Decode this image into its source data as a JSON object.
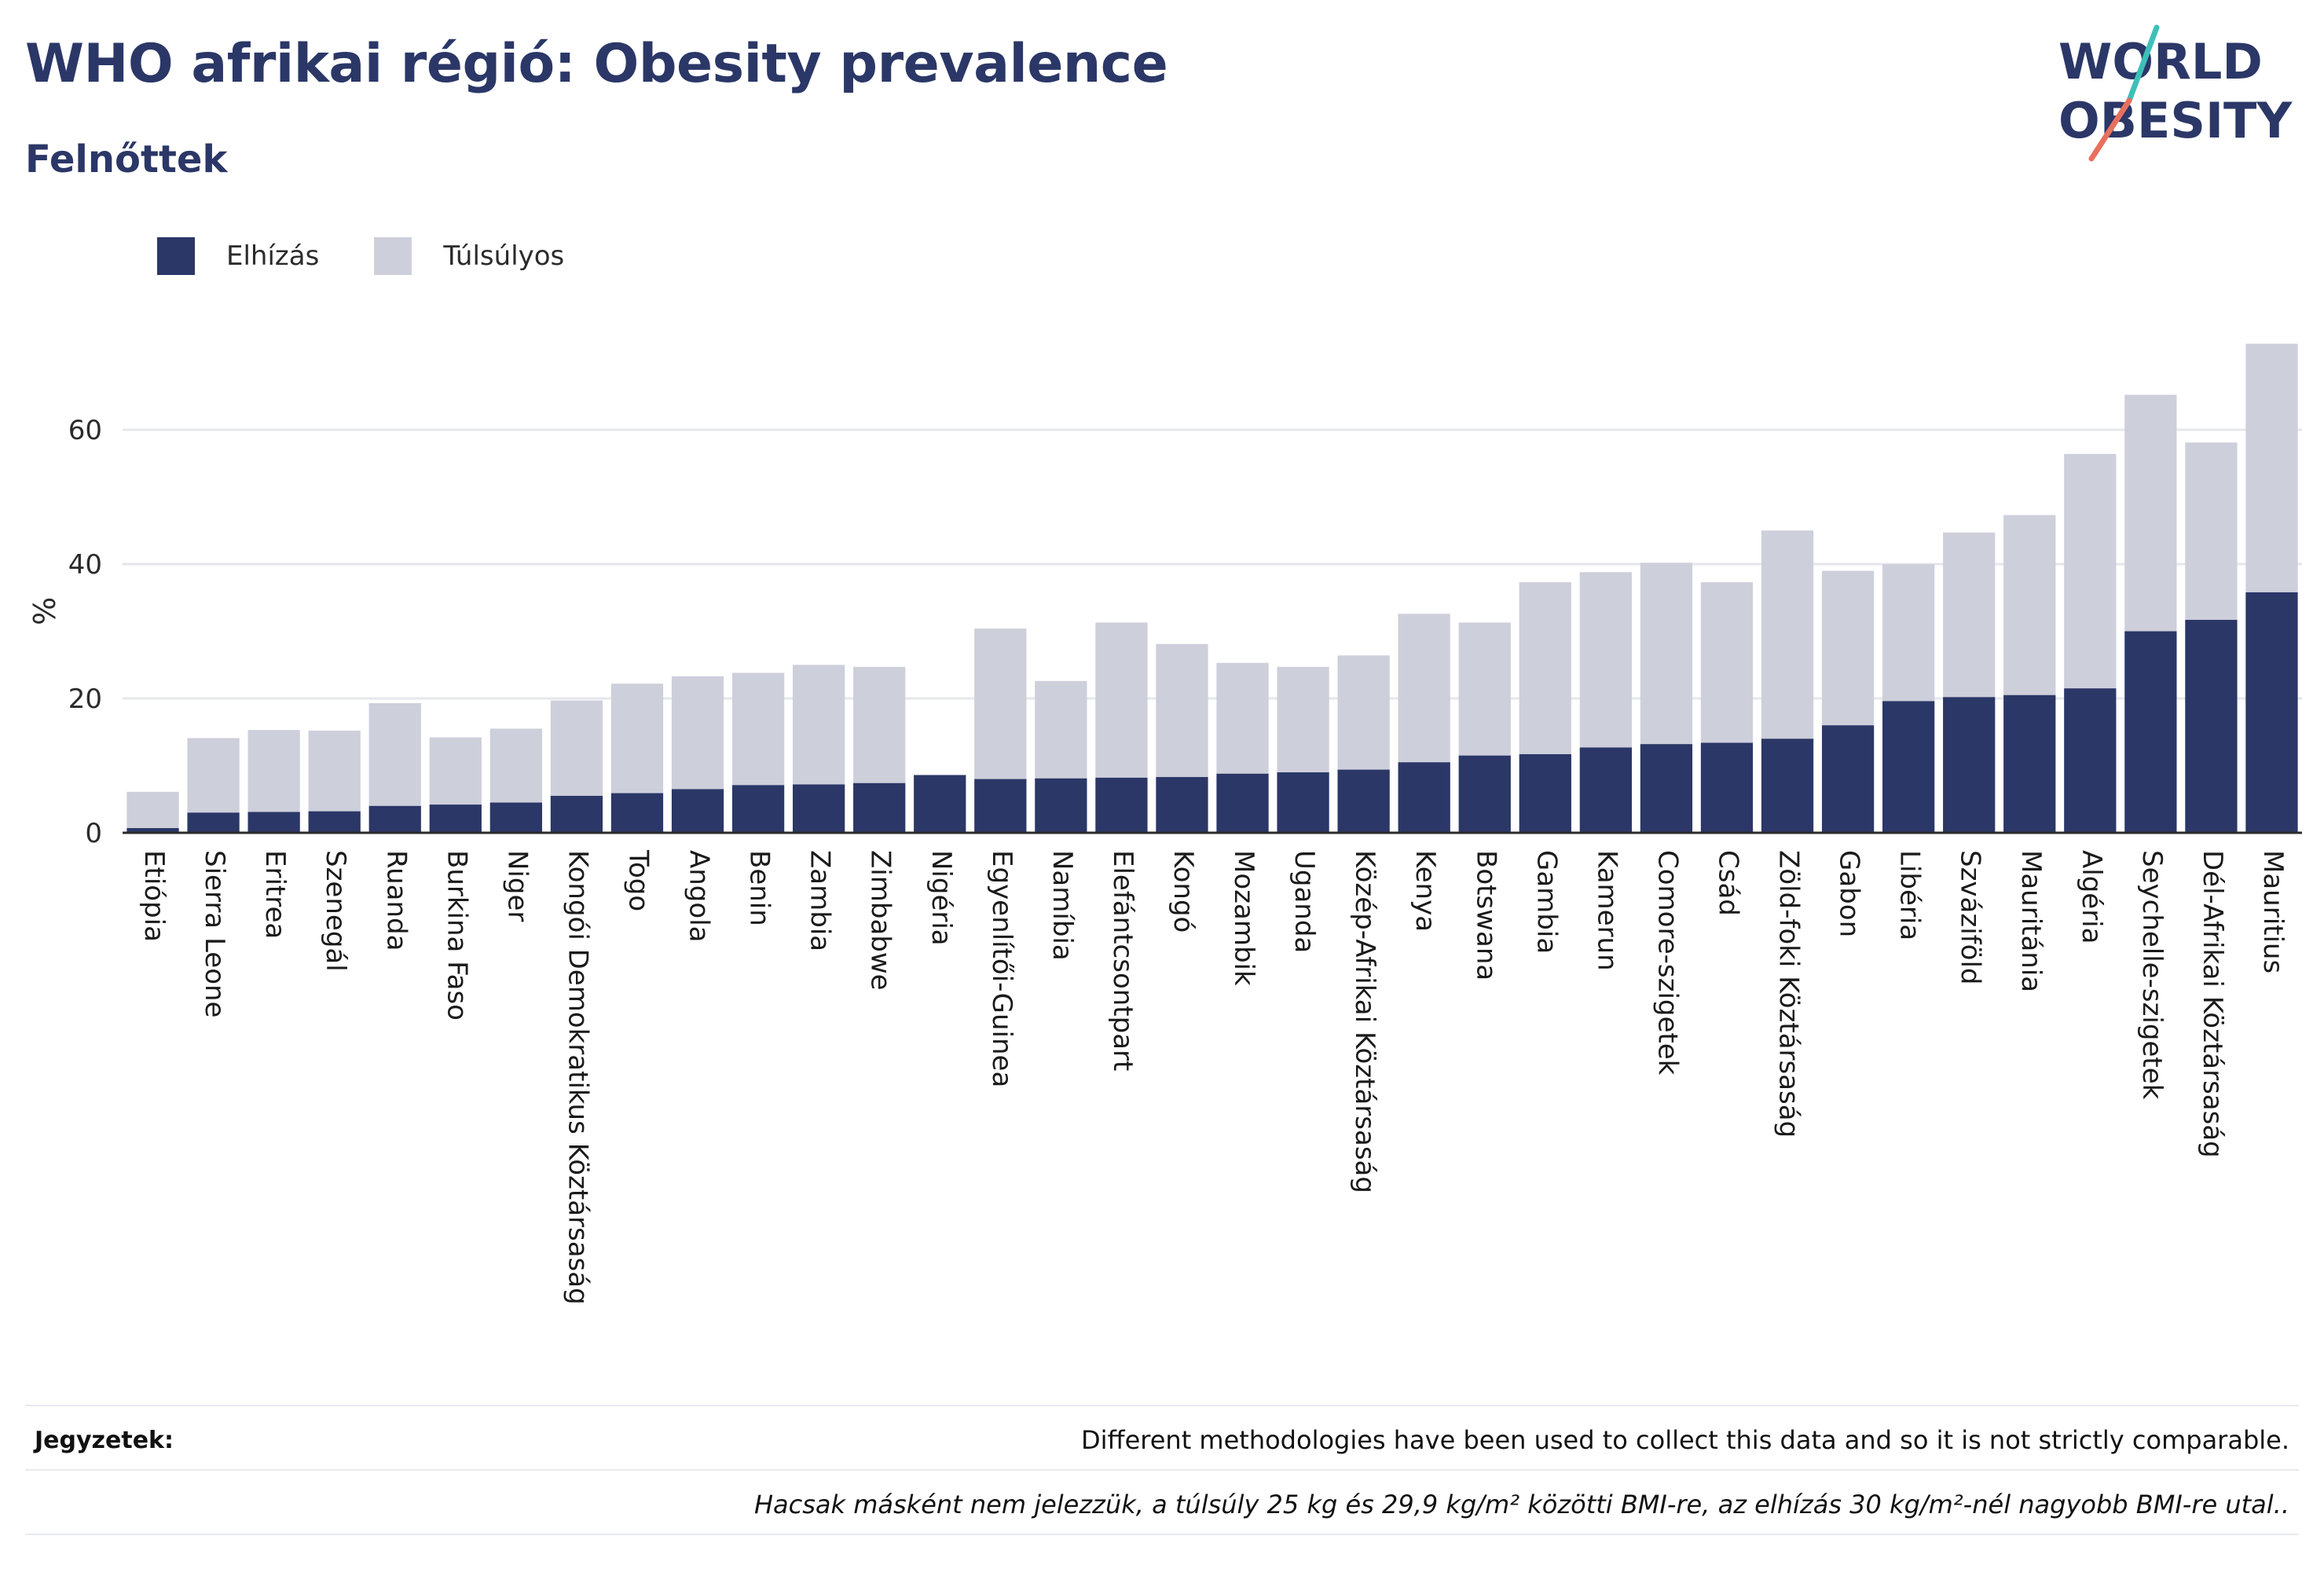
{
  "header": {
    "title": "WHO afrikai régió: Obesity prevalence",
    "subtitle": "Felnőttek"
  },
  "logo": {
    "line1": "WORLD",
    "line2": "OBESITY",
    "accent_color": "#e8705e",
    "accent_color_2": "#3cc0b8"
  },
  "legend": {
    "items": [
      {
        "label": "Elhízás",
        "color": "#2b3767"
      },
      {
        "label": "Túlsúlyos",
        "color": "#cdcfdb"
      }
    ]
  },
  "chart_data": {
    "type": "bar",
    "stacked": true,
    "ylabel": "%",
    "ylim": [
      0,
      75
    ],
    "yticks": [
      0,
      20,
      40,
      60
    ],
    "grid": true,
    "legend_position": "top-left",
    "categories": [
      "Etiópia",
      "Sierra Leone",
      "Eritrea",
      "Szenegál",
      "Ruanda",
      "Burkina Faso",
      "Niger",
      "Kongói Demokratikus Köztársaság",
      "Togo",
      "Angola",
      "Benin",
      "Zambia",
      "Zimbabwe",
      "Nigéria",
      "Egyenlítői-Guinea",
      "Namíbia",
      "Elefántcsontpart",
      "Kongó",
      "Mozambik",
      "Uganda",
      "Közép-Afrikai Köztársaság",
      "Kenya",
      "Botswana",
      "Gambia",
      "Kamerun",
      "Comore-szigetek",
      "Csád",
      "Zöld-foki Köztársaság",
      "Gabon",
      "Libéria",
      "Szváziföld",
      "Mauritánia",
      "Algéria",
      "Seychelle-szigetek",
      "Dél-Afrikai Köztársaság",
      "Mauritius"
    ],
    "series": [
      {
        "name": "Elhízás",
        "color": "#2b3767",
        "values": [
          0.7,
          3.0,
          3.1,
          3.2,
          4.0,
          4.2,
          4.5,
          5.5,
          5.9,
          6.5,
          7.1,
          7.2,
          7.4,
          8.6,
          8.0,
          8.1,
          8.2,
          8.3,
          8.8,
          9.0,
          9.4,
          10.5,
          11.5,
          11.7,
          12.7,
          13.2,
          13.4,
          14.0,
          16.0,
          19.6,
          20.2,
          20.5,
          21.5,
          30.0,
          31.7,
          35.8
        ]
      },
      {
        "name": "Túlsúlyos",
        "color": "#cdcfdb",
        "values": [
          5.4,
          11.1,
          12.2,
          12.0,
          15.3,
          10.0,
          11.0,
          14.2,
          16.3,
          16.8,
          16.7,
          17.8,
          17.3,
          0.0,
          22.4,
          14.5,
          23.1,
          19.8,
          16.5,
          15.7,
          17.0,
          22.1,
          19.8,
          25.6,
          26.1,
          27.0,
          23.9,
          31.0,
          23.0,
          20.4,
          24.5,
          26.8,
          34.9,
          35.2,
          26.4,
          37.0
        ]
      }
    ]
  },
  "notes": {
    "label": "Jegyzetek:",
    "text": "Different methodologies have been used to collect this data and so it is not strictly comparable.",
    "footnote": "Hacsak másként nem jelezzük, a túlsúly 25 kg és 29,9 kg/m² közötti BMI-re, az elhízás 30 kg/m²-nél nagyobb BMI-re utal.."
  }
}
